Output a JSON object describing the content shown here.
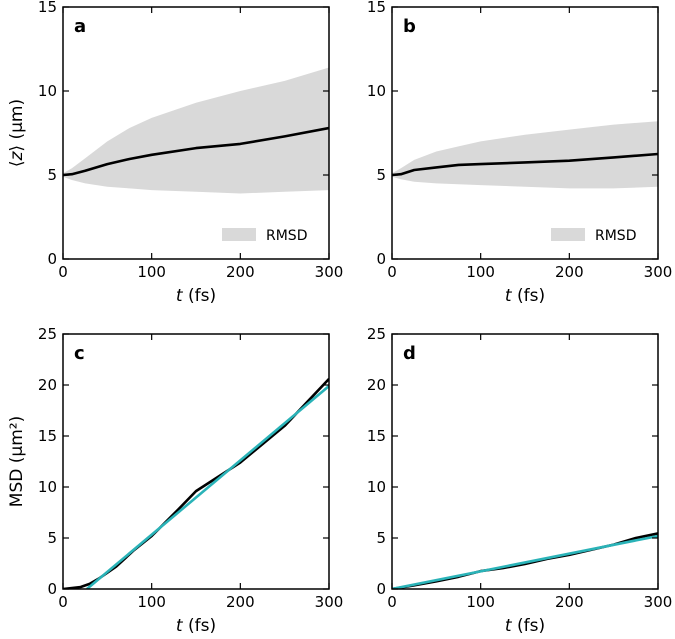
{
  "chart_data": [
    {
      "panel": "a",
      "type": "line",
      "xlabel": "t (fs)",
      "ylabel": "⟨z⟩ (μm)",
      "xlim": [
        0,
        300
      ],
      "ylim": [
        0,
        15
      ],
      "xticks": [
        0,
        100,
        200,
        300
      ],
      "yticks": [
        0,
        5,
        10,
        15
      ],
      "legend": {
        "label": "RMSD",
        "position": "bottom-right"
      },
      "band": {
        "name": "RMSD",
        "color": "#d9d9d9",
        "x": [
          0,
          10,
          25,
          50,
          75,
          100,
          150,
          200,
          250,
          300
        ],
        "upper": [
          5.1,
          5.4,
          6.0,
          7.0,
          7.8,
          8.4,
          9.3,
          10.0,
          10.6,
          11.4
        ],
        "lower": [
          4.9,
          4.7,
          4.5,
          4.3,
          4.2,
          4.1,
          4.0,
          3.9,
          4.0,
          4.1
        ]
      },
      "series": [
        {
          "name": "mean",
          "color": "#000000",
          "x": [
            0,
            10,
            25,
            50,
            75,
            100,
            150,
            200,
            250,
            300
          ],
          "y": [
            5.0,
            5.05,
            5.25,
            5.65,
            5.95,
            6.2,
            6.6,
            6.85,
            7.3,
            7.8
          ]
        }
      ]
    },
    {
      "panel": "b",
      "type": "line",
      "xlabel": "t (fs)",
      "ylabel": "",
      "xlim": [
        0,
        300
      ],
      "ylim": [
        0,
        15
      ],
      "xticks": [
        0,
        100,
        200,
        300
      ],
      "yticks": [
        0,
        5,
        10,
        15
      ],
      "legend": {
        "label": "RMSD",
        "position": "bottom-right"
      },
      "band": {
        "name": "RMSD",
        "color": "#d9d9d9",
        "x": [
          0,
          10,
          25,
          50,
          75,
          100,
          150,
          200,
          250,
          300
        ],
        "upper": [
          5.1,
          5.4,
          5.9,
          6.4,
          6.7,
          7.0,
          7.4,
          7.7,
          8.0,
          8.2
        ],
        "lower": [
          4.9,
          4.75,
          4.6,
          4.5,
          4.45,
          4.4,
          4.3,
          4.2,
          4.2,
          4.3
        ]
      },
      "series": [
        {
          "name": "mean",
          "color": "#000000",
          "x": [
            0,
            10,
            25,
            50,
            75,
            100,
            150,
            200,
            250,
            300
          ],
          "y": [
            5.0,
            5.05,
            5.3,
            5.45,
            5.6,
            5.65,
            5.75,
            5.85,
            6.05,
            6.25
          ]
        }
      ]
    },
    {
      "panel": "c",
      "type": "line",
      "xlabel": "t (fs)",
      "ylabel": "MSD (μm²)",
      "xlim": [
        0,
        300
      ],
      "ylim": [
        0,
        25
      ],
      "xticks": [
        0,
        100,
        200,
        300
      ],
      "yticks": [
        0,
        5,
        10,
        15,
        20,
        25
      ],
      "series": [
        {
          "name": "data",
          "color": "#000000",
          "x": [
            0,
            20,
            30,
            40,
            60,
            80,
            100,
            130,
            150,
            200,
            250,
            300
          ],
          "y": [
            0,
            0.2,
            0.5,
            1.0,
            2.2,
            3.8,
            5.2,
            7.8,
            9.6,
            12.4,
            16.0,
            20.6
          ]
        },
        {
          "name": "fit",
          "color": "#2ab3b8",
          "x": [
            27,
            300
          ],
          "y": [
            0,
            19.9
          ]
        }
      ]
    },
    {
      "panel": "d",
      "type": "line",
      "xlabel": "t (fs)",
      "ylabel": "",
      "xlim": [
        0,
        300
      ],
      "ylim": [
        0,
        25
      ],
      "xticks": [
        0,
        100,
        200,
        300
      ],
      "yticks": [
        0,
        5,
        10,
        15,
        20,
        25
      ],
      "series": [
        {
          "name": "data",
          "color": "#000000",
          "x": [
            0,
            25,
            50,
            75,
            100,
            125,
            150,
            175,
            200,
            225,
            250,
            275,
            300
          ],
          "y": [
            0,
            0.35,
            0.75,
            1.2,
            1.75,
            2.05,
            2.45,
            2.95,
            3.35,
            3.85,
            4.35,
            5.0,
            5.45
          ]
        },
        {
          "name": "fit",
          "color": "#2ab3b8",
          "x": [
            0,
            300
          ],
          "y": [
            0,
            5.2
          ]
        }
      ]
    }
  ]
}
